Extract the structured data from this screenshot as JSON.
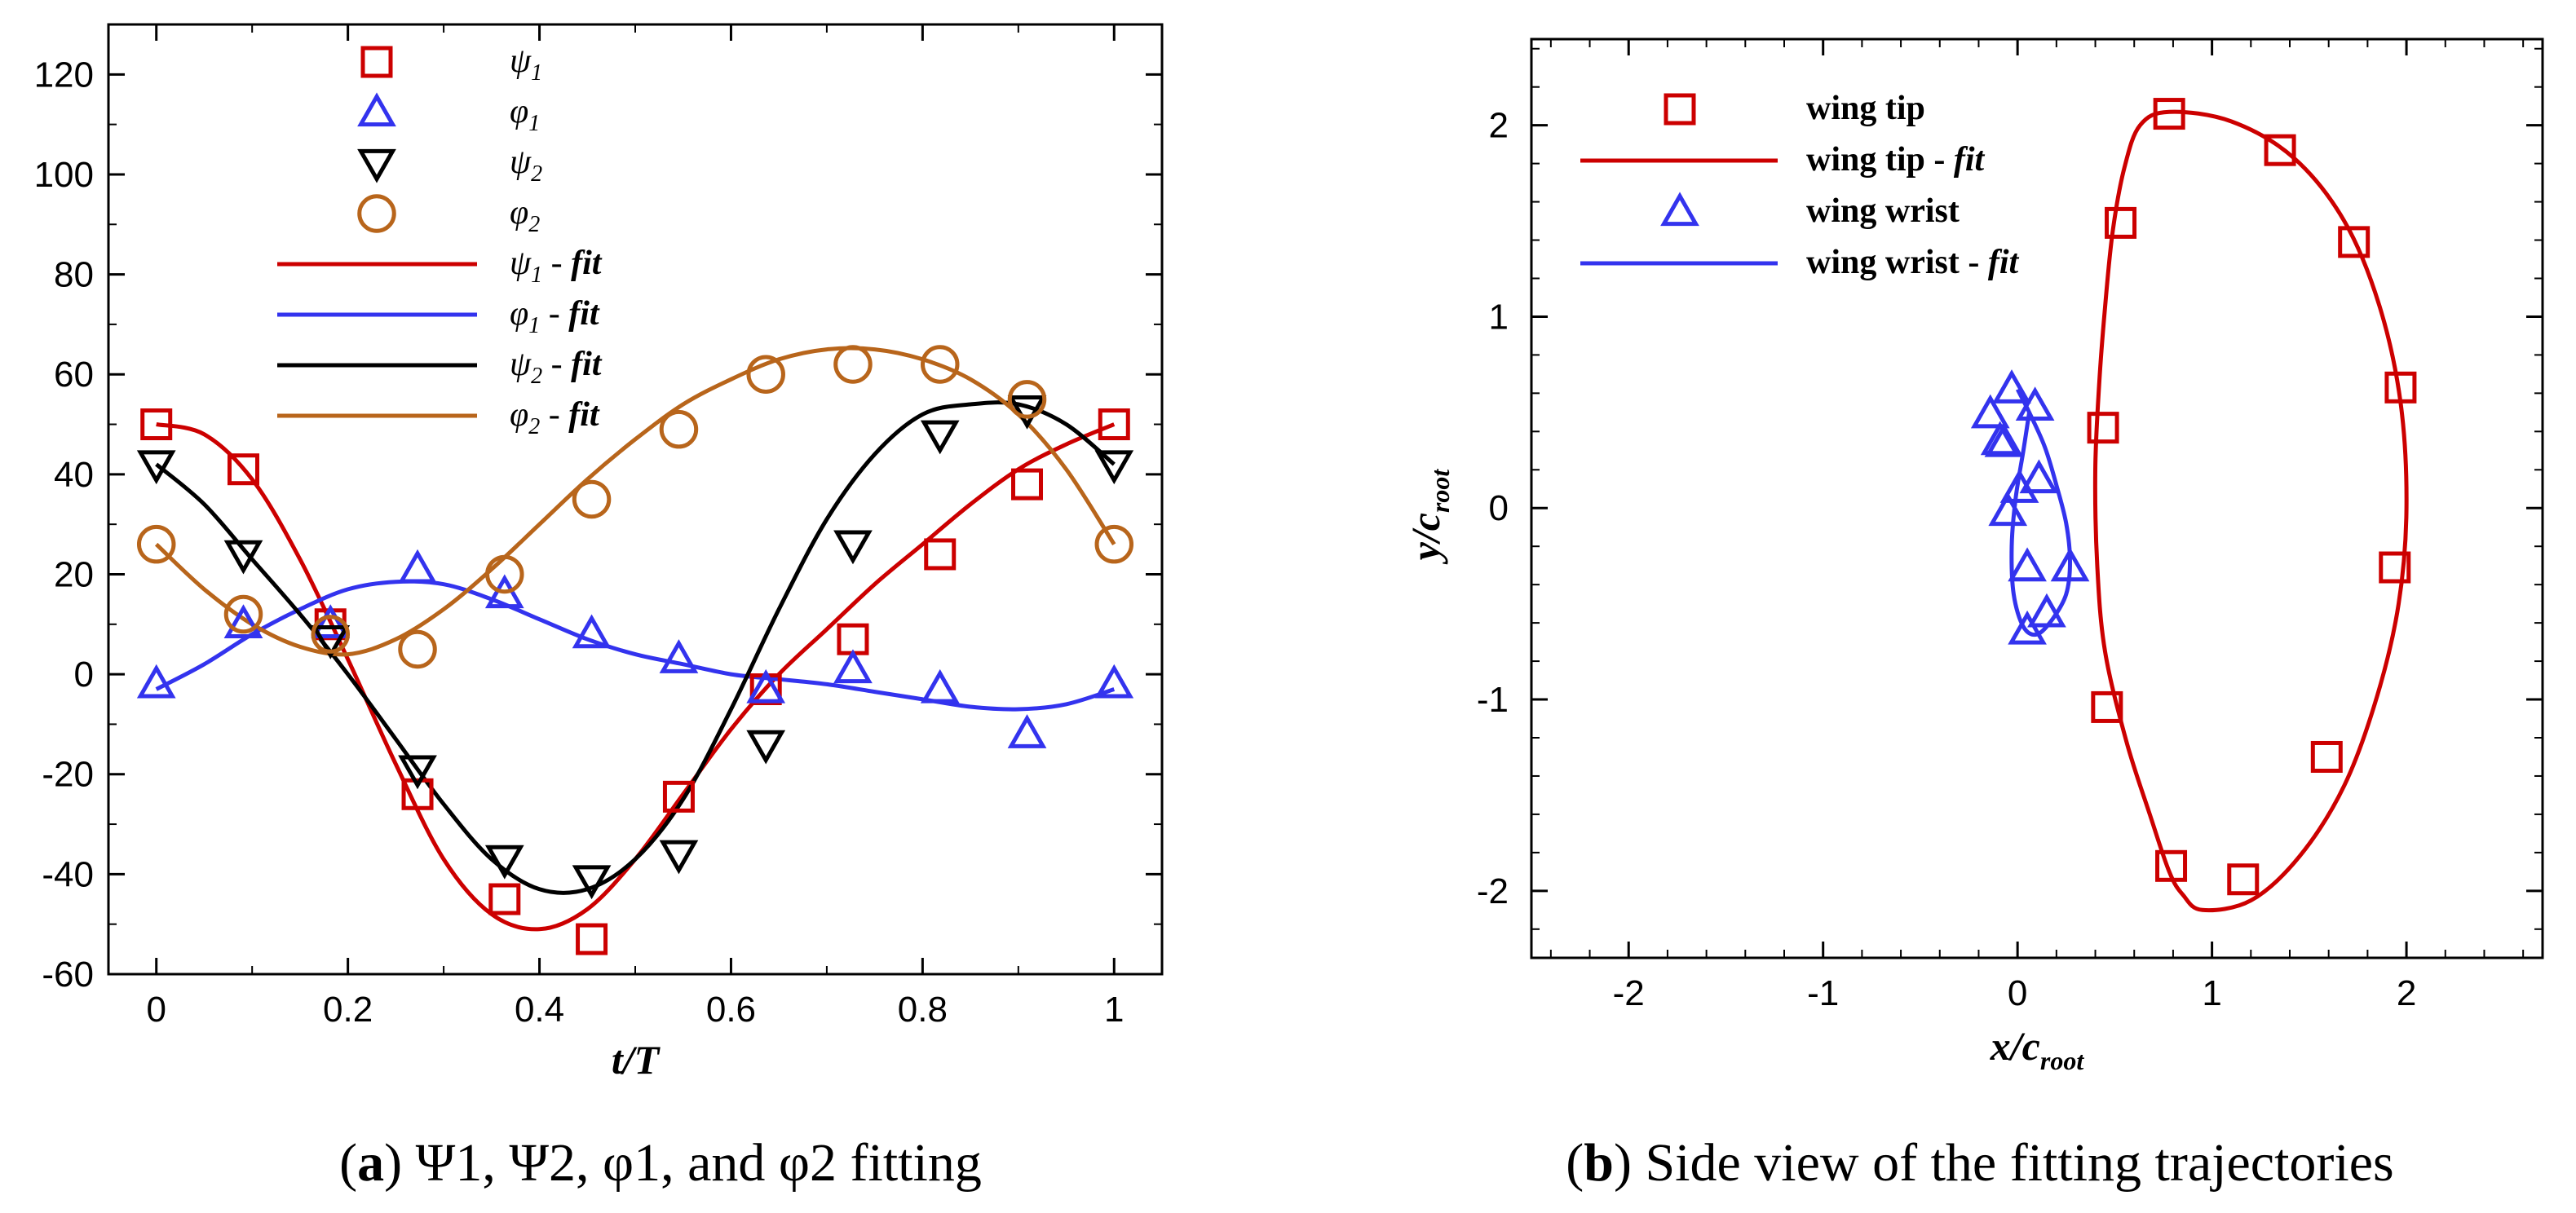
{
  "chart_data": [
    {
      "type": "scatter",
      "panel": "a",
      "caption": {
        "label": "a",
        "text": "Ψ1, Ψ2, φ1, and φ2 fitting"
      },
      "xlabel": "t/T",
      "ylabel": "",
      "xlim": [
        -0.05,
        1.05
      ],
      "ylim": [
        -60,
        130
      ],
      "xticks": [
        0,
        0.2,
        0.4,
        0.6,
        0.8,
        1
      ],
      "xtick_labels": [
        "0",
        "0.2",
        "0.4",
        "0.6",
        "0.8",
        "1"
      ],
      "yticks": [
        -60,
        -40,
        -20,
        0,
        20,
        40,
        60,
        80,
        100,
        120
      ],
      "ytick_labels": [
        "-60",
        "-40",
        "-20",
        "0",
        "20",
        "40",
        "60",
        "80",
        "100",
        "120"
      ],
      "legend_position": "top-center",
      "series": [
        {
          "name": "ψ1",
          "sym": "ψ",
          "sub": "1",
          "suffix": "",
          "kind": "markers",
          "marker": "square",
          "color": "#cc0000",
          "x": [
            0,
            0.0909,
            0.1818,
            0.2727,
            0.3636,
            0.4545,
            0.5455,
            0.6364,
            0.7273,
            0.8182,
            0.9091,
            1
          ],
          "y": [
            50,
            41,
            10,
            -24,
            -45,
            -53,
            -24.5,
            -3,
            7,
            24,
            38,
            50
          ]
        },
        {
          "name": "φ1",
          "sym": "φ",
          "sub": "1",
          "suffix": "",
          "kind": "markers",
          "marker": "triangle-up",
          "color": "#3333ee",
          "x": [
            0,
            0.0909,
            0.1818,
            0.2727,
            0.3636,
            0.4545,
            0.5455,
            0.6364,
            0.7273,
            0.8182,
            0.9091,
            1
          ],
          "y": [
            -2,
            10,
            10,
            21,
            16,
            8,
            3,
            -3,
            1,
            -3,
            -12,
            -2
          ]
        },
        {
          "name": "ψ2",
          "sym": "ψ",
          "sub": "2",
          "suffix": "",
          "kind": "markers",
          "marker": "triangle-down",
          "color": "#000000",
          "x": [
            0,
            0.0909,
            0.1818,
            0.2727,
            0.3636,
            0.4545,
            0.5455,
            0.6364,
            0.7273,
            0.8182,
            0.9091,
            1
          ],
          "y": [
            42,
            24,
            7,
            -19,
            -37,
            -41,
            -36,
            -14,
            26,
            48,
            53,
            42
          ]
        },
        {
          "name": "φ2",
          "sym": "φ",
          "sub": "2",
          "suffix": "",
          "kind": "markers",
          "marker": "circle",
          "color": "#b8651b",
          "x": [
            0,
            0.0909,
            0.1818,
            0.2727,
            0.3636,
            0.4545,
            0.5455,
            0.6364,
            0.7273,
            0.8182,
            0.9091,
            1
          ],
          "y": [
            26,
            12,
            8,
            5,
            20,
            35,
            49,
            60,
            62,
            62,
            55,
            26
          ]
        },
        {
          "name": "ψ1 - fit",
          "sym": "ψ",
          "sub": "1",
          "suffix": " - fit",
          "kind": "line",
          "color": "#cc0000",
          "x": [
            0,
            0.05,
            0.1,
            0.15,
            0.2,
            0.25,
            0.3,
            0.35,
            0.4,
            0.45,
            0.5,
            0.55,
            0.6,
            0.65,
            0.7,
            0.75,
            0.8,
            0.85,
            0.9,
            0.95,
            1
          ],
          "y": [
            50,
            48,
            39,
            23,
            3,
            -18,
            -37,
            -48,
            -51,
            -47,
            -37,
            -24,
            -11,
            0,
            9,
            18,
            26,
            34,
            41,
            46,
            50
          ]
        },
        {
          "name": "φ1 - fit",
          "sym": "φ",
          "sub": "1",
          "suffix": " - fit",
          "kind": "line",
          "color": "#3333ee",
          "x": [
            0,
            0.05,
            0.1,
            0.15,
            0.2,
            0.25,
            0.3,
            0.35,
            0.4,
            0.45,
            0.5,
            0.55,
            0.6,
            0.65,
            0.7,
            0.75,
            0.8,
            0.85,
            0.9,
            0.95,
            1
          ],
          "y": [
            -3,
            2,
            8,
            13,
            17,
            18.5,
            18,
            15,
            11,
            7,
            4,
            2,
            0,
            -1,
            -2,
            -3.5,
            -5,
            -6.5,
            -7,
            -6,
            -3
          ]
        },
        {
          "name": "ψ2 - fit",
          "sym": "ψ",
          "sub": "2",
          "suffix": " - fit",
          "kind": "line",
          "color": "#000000",
          "x": [
            0,
            0.05,
            0.1,
            0.15,
            0.2,
            0.25,
            0.3,
            0.35,
            0.4,
            0.45,
            0.5,
            0.55,
            0.6,
            0.65,
            0.7,
            0.75,
            0.8,
            0.85,
            0.9,
            0.95,
            1
          ],
          "y": [
            42,
            34,
            23,
            12,
            0,
            -13,
            -26,
            -37,
            -43,
            -43,
            -37,
            -25,
            -7,
            13,
            31,
            44,
            52,
            54,
            54,
            50,
            42
          ]
        },
        {
          "name": "φ2 - fit",
          "sym": "φ",
          "sub": "2",
          "suffix": " - fit",
          "kind": "line",
          "color": "#b8651b",
          "x": [
            0,
            0.05,
            0.1,
            0.15,
            0.2,
            0.25,
            0.3,
            0.35,
            0.4,
            0.45,
            0.5,
            0.55,
            0.6,
            0.65,
            0.7,
            0.75,
            0.8,
            0.85,
            0.9,
            0.95,
            1
          ],
          "y": [
            26,
            17,
            10,
            5.5,
            4,
            7,
            13,
            21,
            30,
            39,
            47,
            54,
            59,
            63,
            65,
            65,
            63,
            59,
            52,
            41,
            26
          ]
        }
      ]
    },
    {
      "type": "scatter",
      "panel": "b",
      "caption": {
        "label": "b",
        "text": "Side view of the fitting trajectories"
      },
      "xlabel": "x/c",
      "xlabel_sub": "root",
      "ylabel": "y/c",
      "ylabel_sub": "root",
      "xlim": [
        -2.5,
        2.7
      ],
      "ylim": [
        -2.35,
        2.45
      ],
      "xticks": [
        -2,
        -1,
        0,
        1,
        2
      ],
      "xtick_labels": [
        "-2",
        "-1",
        "0",
        "1",
        "2"
      ],
      "yticks": [
        -2,
        -1,
        0,
        1,
        2
      ],
      "ytick_labels": [
        "-2",
        "-1",
        "0",
        "1",
        "2"
      ],
      "legend_position": "top-left",
      "series": [
        {
          "name": "wing tip",
          "label_main": "wing tip",
          "label_it": "",
          "kind": "markers",
          "marker": "square",
          "color": "#cc0000",
          "x": [
            0.78,
            1.35,
            1.73,
            1.97,
            1.94,
            1.59,
            1.16,
            0.79,
            0.46,
            0.44,
            0.53
          ],
          "y": [
            2.06,
            1.87,
            1.39,
            0.63,
            -0.31,
            -1.3,
            -1.94,
            -1.87,
            -1.04,
            0.42,
            1.49
          ]
        },
        {
          "name": "wing tip - fit",
          "label_main": "wing tip - ",
          "label_it": "fit",
          "kind": "line",
          "color": "#cc0000",
          "closed": true,
          "x": [
            0.78,
            1.1,
            1.42,
            1.68,
            1.86,
            1.97,
            2.0,
            1.96,
            1.85,
            1.68,
            1.45,
            1.2,
            0.95,
            0.85,
            0.78,
            0.68,
            0.56,
            0.45,
            0.41,
            0.4,
            0.42,
            0.45,
            0.49,
            0.55,
            0.63
          ],
          "y": [
            2.07,
            2.02,
            1.83,
            1.5,
            1.06,
            0.55,
            0.0,
            -0.5,
            -0.98,
            -1.45,
            -1.82,
            -2.05,
            -2.1,
            -2.02,
            -1.9,
            -1.6,
            -1.22,
            -0.75,
            -0.3,
            0.2,
            0.65,
            1.05,
            1.45,
            1.78,
            2.0
          ]
        },
        {
          "name": "wing wrist",
          "label_main": "wing wrist",
          "label_it": "",
          "kind": "markers",
          "marker": "triangle-up",
          "color": "#3333ee",
          "x": [
            -0.03,
            0.09,
            0.11,
            0.27,
            0.15,
            0.05,
            -0.14,
            -0.07,
            0.01,
            0.05,
            -0.05,
            -0.09
          ],
          "y": [
            0.62,
            0.53,
            0.15,
            -0.31,
            -0.55,
            -0.64,
            0.49,
            0.34,
            0.1,
            -0.31,
            -0.02,
            0.35
          ]
        },
        {
          "name": "wing wrist - fit",
          "label_main": "wing wrist - ",
          "label_it": "fit",
          "kind": "line",
          "color": "#3333ee",
          "closed": false,
          "x": [
            0.0,
            0.06,
            0.14,
            0.2,
            0.25,
            0.27,
            0.25,
            0.18,
            0.1,
            0.03,
            -0.02,
            -0.03,
            -0.01,
            0.03,
            0.06
          ],
          "y": [
            0.62,
            0.5,
            0.32,
            0.12,
            -0.08,
            -0.28,
            -0.45,
            -0.58,
            -0.66,
            -0.62,
            -0.45,
            -0.2,
            0.05,
            0.3,
            0.5
          ]
        }
      ]
    }
  ]
}
